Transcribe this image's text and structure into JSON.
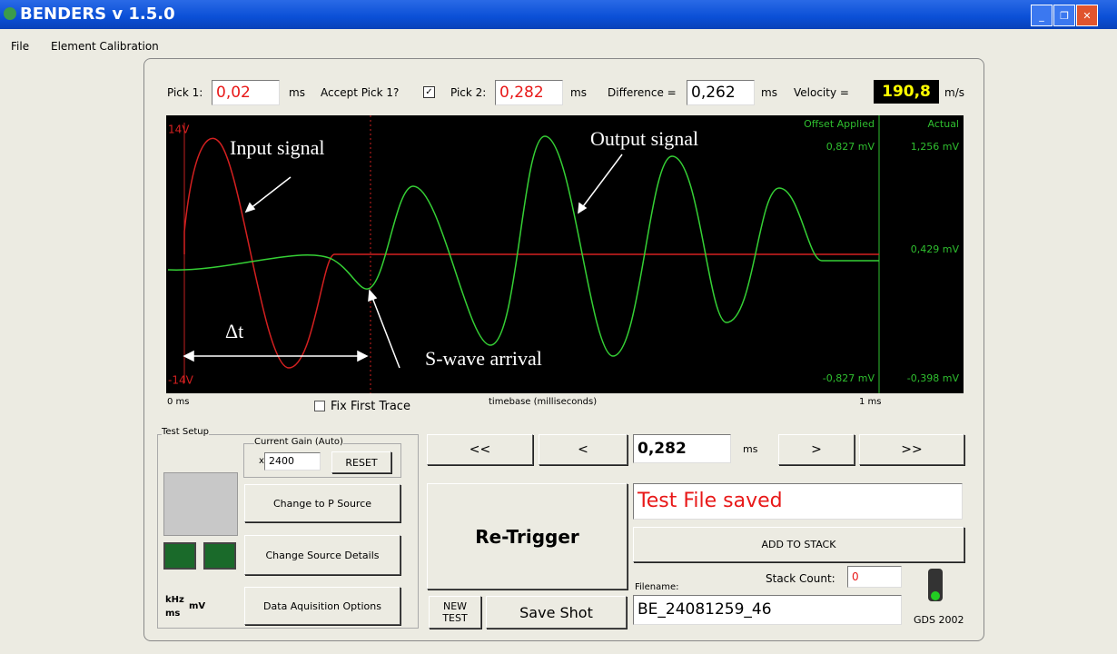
{
  "window": {
    "title": "BENDERS v 1.5.0"
  },
  "menu": [
    "File",
    "Element Calibration"
  ],
  "picks": {
    "pick1_label": "Pick 1:",
    "pick1": "0,02",
    "pick1_unit": "ms",
    "accept_label": "Accept Pick 1?",
    "pick2_label": "Pick 2:",
    "pick2": "0,282",
    "pick2_unit": "ms",
    "difference_label": "Difference =",
    "difference": "0,262",
    "difference_unit": "ms",
    "velocity_label": "Velocity =",
    "velocity": "190,8",
    "velocity_unit": "m/s"
  },
  "scope": {
    "v_max": "14V",
    "v_min": "-14V",
    "offset_header": "Offset Applied",
    "actual_header": "Actual",
    "offset_top": "0,827 mV",
    "actual_top": "1,256 mV",
    "mid": "0,429 mV",
    "offset_bottom": "-0,827 mV",
    "actual_bottom": "-0,398 mV",
    "annotations": {
      "input": "Input signal",
      "output": "Output signal",
      "delta_t": "Δt",
      "s_wave": "S-wave arrival"
    },
    "t_start": "0 ms",
    "fix_first_trace": "Fix First Trace",
    "timebase": "timebase (milliseconds)",
    "t_end": "1 ms"
  },
  "test_setup": {
    "title": "Test Setup",
    "gain_title": "Current Gain (Auto)",
    "gain_prefix": "x",
    "gain": "2400",
    "reset": "RESET",
    "buttons": [
      "Change to P Source",
      "Change Source Details",
      "Data Aquisition Options"
    ],
    "units": [
      "kHz",
      "mV",
      "ms"
    ]
  },
  "controls": {
    "first": "<<",
    "prev": "<",
    "position": "0,282",
    "position_unit": "ms",
    "next": ">",
    "last": ">>",
    "retrigger": "Re-Trigger",
    "new_test": "NEW TEST",
    "save_shot": "Save Shot",
    "status": "Test File saved",
    "add_to_stack": "ADD TO STACK",
    "stack_count_label": "Stack Count:",
    "stack_count": "0",
    "filename_label": "Filename:",
    "filename": "BE_24081259_46",
    "credit": "GDS 2002"
  }
}
